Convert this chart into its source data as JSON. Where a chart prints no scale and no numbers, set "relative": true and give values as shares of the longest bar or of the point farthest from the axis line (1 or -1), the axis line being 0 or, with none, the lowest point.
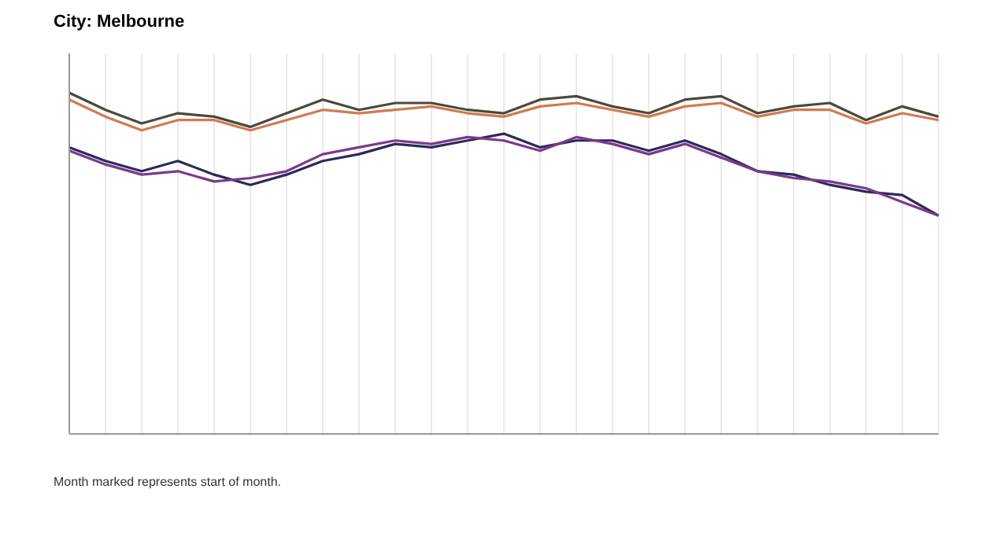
{
  "chart_data": {
    "type": "line",
    "title": "City: Melbourne",
    "relative": true,
    "grid": "x",
    "legend": false,
    "marker": "none",
    "line_style": "solid",
    "categories": [
      null,
      null,
      null,
      null,
      null,
      null,
      null,
      null,
      null,
      null,
      null,
      null,
      null,
      null,
      null,
      null,
      null,
      null,
      null,
      null,
      null,
      null,
      null,
      null,
      null
    ],
    "series": [
      {
        "color": "#4a4a3a",
        "values": [
          1.0,
          0.95,
          0.91,
          0.94,
          0.93,
          0.9,
          0.94,
          0.98,
          0.95,
          0.97,
          0.97,
          0.95,
          0.94,
          0.98,
          0.99,
          0.96,
          0.94,
          0.98,
          0.99,
          0.94,
          0.96,
          0.97,
          0.92,
          0.96,
          0.93
        ]
      },
      {
        "color": "#d07a50",
        "values": [
          0.98,
          0.93,
          0.89,
          0.92,
          0.92,
          0.89,
          0.92,
          0.95,
          0.94,
          0.95,
          0.96,
          0.94,
          0.93,
          0.96,
          0.97,
          0.95,
          0.93,
          0.96,
          0.97,
          0.93,
          0.95,
          0.95,
          0.91,
          0.94,
          0.92
        ]
      },
      {
        "color": "#2a2a5a",
        "values": [
          0.84,
          0.8,
          0.77,
          0.8,
          0.76,
          0.73,
          0.76,
          0.8,
          0.82,
          0.85,
          0.84,
          0.86,
          0.88,
          0.84,
          0.86,
          0.86,
          0.83,
          0.86,
          0.82,
          0.77,
          0.76,
          0.73,
          0.71,
          0.7,
          0.64
        ]
      },
      {
        "color": "#7a3a8a",
        "values": [
          0.83,
          0.79,
          0.76,
          0.77,
          0.74,
          0.75,
          0.77,
          0.82,
          0.84,
          0.86,
          0.85,
          0.87,
          0.86,
          0.83,
          0.87,
          0.85,
          0.82,
          0.85,
          0.81,
          0.77,
          0.75,
          0.74,
          0.72,
          0.68,
          0.64
        ]
      }
    ],
    "annotations": [
      "Month marked represents start of month."
    ]
  }
}
